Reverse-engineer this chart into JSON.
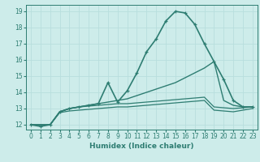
{
  "xlabel": "Humidex (Indice chaleur)",
  "background_color": "#cdecea",
  "grid_color": "#b8dedd",
  "line_color": "#2e7d72",
  "xlim": [
    -0.5,
    23.5
  ],
  "ylim": [
    11.7,
    19.4
  ],
  "yticks": [
    12,
    13,
    14,
    15,
    16,
    17,
    18,
    19
  ],
  "xticks": [
    0,
    1,
    2,
    3,
    4,
    5,
    6,
    7,
    8,
    9,
    10,
    11,
    12,
    13,
    14,
    15,
    16,
    17,
    18,
    19,
    20,
    21,
    22,
    23
  ],
  "series": [
    {
      "x": [
        0,
        1,
        2,
        3,
        4,
        5,
        6,
        7,
        8,
        9,
        10,
        11,
        12,
        13,
        14,
        15,
        16,
        17,
        18,
        19,
        20,
        21,
        22,
        23
      ],
      "y": [
        12.0,
        11.9,
        12.0,
        12.8,
        13.0,
        13.1,
        13.2,
        13.3,
        14.6,
        13.4,
        14.1,
        15.2,
        16.5,
        17.3,
        18.4,
        19.0,
        18.9,
        18.2,
        17.0,
        15.9,
        14.8,
        13.5,
        13.1,
        13.1
      ],
      "marker": "+",
      "linewidth": 1.2
    },
    {
      "x": [
        0,
        2,
        3,
        4,
        5,
        6,
        7,
        8,
        9,
        10,
        11,
        12,
        13,
        14,
        15,
        16,
        17,
        18,
        19,
        20,
        21,
        22,
        23
      ],
      "y": [
        12.0,
        12.0,
        12.8,
        13.0,
        13.1,
        13.2,
        13.3,
        13.4,
        13.5,
        13.6,
        13.8,
        14.0,
        14.2,
        14.4,
        14.6,
        14.9,
        15.2,
        15.5,
        15.9,
        13.5,
        13.2,
        13.1,
        13.1
      ],
      "marker": null,
      "linewidth": 1.0
    },
    {
      "x": [
        0,
        2,
        3,
        4,
        5,
        6,
        7,
        8,
        9,
        10,
        11,
        12,
        13,
        14,
        15,
        16,
        17,
        18,
        19,
        20,
        21,
        22,
        23
      ],
      "y": [
        12.0,
        12.0,
        12.8,
        13.0,
        13.1,
        13.15,
        13.2,
        13.25,
        13.3,
        13.3,
        13.35,
        13.4,
        13.45,
        13.5,
        13.55,
        13.6,
        13.65,
        13.7,
        13.1,
        13.05,
        13.0,
        13.05,
        13.1
      ],
      "marker": null,
      "linewidth": 0.9
    },
    {
      "x": [
        0,
        2,
        3,
        4,
        5,
        6,
        7,
        8,
        9,
        10,
        11,
        12,
        13,
        14,
        15,
        16,
        17,
        18,
        19,
        20,
        21,
        22,
        23
      ],
      "y": [
        12.0,
        12.0,
        12.75,
        12.85,
        12.9,
        12.95,
        13.0,
        13.05,
        13.1,
        13.1,
        13.15,
        13.2,
        13.25,
        13.3,
        13.35,
        13.4,
        13.45,
        13.5,
        12.9,
        12.85,
        12.8,
        12.9,
        13.0
      ],
      "marker": null,
      "linewidth": 0.9
    }
  ]
}
